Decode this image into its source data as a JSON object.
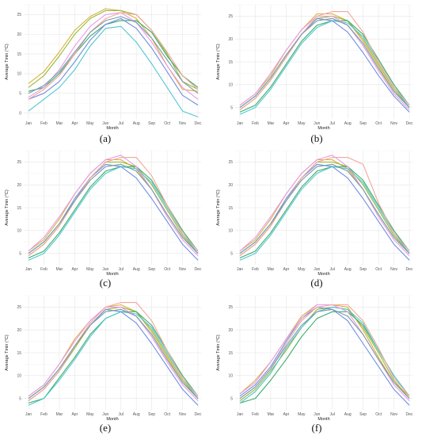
{
  "chart_data": [
    {
      "type": "line",
      "panel_label": "(a)",
      "xlabel": "Month",
      "ylabel": "Average Tmin (°C)",
      "categories": [
        "Jan",
        "Feb",
        "Mar",
        "Apr",
        "May",
        "Jun",
        "Jul",
        "Aug",
        "Sep",
        "Oct",
        "Nov",
        "Dec"
      ],
      "y_ticks": [
        0,
        5,
        10,
        15,
        20,
        25
      ],
      "ylim": [
        -1.5,
        27.5
      ],
      "grid": true,
      "series": [
        {
          "color": "#d9b23a",
          "values": [
            7.5,
            10.5,
            15.5,
            21,
            24.5,
            26.5,
            26,
            24,
            19,
            12,
            6,
            5.5
          ]
        },
        {
          "color": "#9ab83a",
          "values": [
            6.5,
            9.5,
            14.5,
            20,
            24,
            26,
            26,
            25,
            21,
            15,
            8,
            6
          ]
        },
        {
          "color": "#3aaa6a",
          "values": [
            5.5,
            6.5,
            10,
            15,
            19.5,
            22.5,
            23.5,
            23.5,
            20.5,
            14.5,
            9.5,
            6.5
          ]
        },
        {
          "color": "#4fc8d0",
          "values": [
            0.5,
            3.5,
            6.5,
            11,
            17,
            21.5,
            22,
            18,
            12.5,
            6.5,
            0.5,
            -1
          ]
        },
        {
          "color": "#6f8fe0",
          "values": [
            3.5,
            5,
            8,
            13,
            18.5,
            22.5,
            24,
            21.5,
            16.5,
            10.5,
            4.5,
            2
          ]
        },
        {
          "color": "#e99aec",
          "values": [
            4,
            6.5,
            11,
            17,
            22,
            25,
            25.5,
            23,
            18,
            12,
            6.5,
            3.5
          ]
        },
        {
          "color": "#f4a59b",
          "values": [
            3.5,
            6,
            9.5,
            15,
            20.5,
            24,
            25.5,
            25,
            21,
            15.5,
            9.5,
            6
          ]
        },
        {
          "color": "#7a9aa8",
          "values": [
            5,
            7,
            10.5,
            15.5,
            20.5,
            23.5,
            24.5,
            23,
            19,
            13.5,
            8,
            5
          ]
        }
      ]
    },
    {
      "type": "line",
      "panel_label": "(b)",
      "xlabel": "Month",
      "ylabel": "Average Tmin (°C)",
      "categories": [
        "Jan",
        "Feb",
        "Mar",
        "Apr",
        "May",
        "Jun",
        "Jul",
        "Aug",
        "Sep",
        "Oct",
        "Nov",
        "Dec"
      ],
      "y_ticks": [
        5,
        10,
        15,
        20,
        25
      ],
      "ylim": [
        2.5,
        27.5
      ],
      "grid": true,
      "series": [
        {
          "color": "#d9b23a",
          "values": [
            5.5,
            8,
            12,
            17.5,
            22,
            25.5,
            25.5,
            24,
            19.5,
            14,
            8.5,
            5
          ]
        },
        {
          "color": "#9ab83a",
          "values": [
            4.5,
            7,
            11,
            16,
            21,
            24.5,
            25,
            24,
            20,
            14.5,
            9,
            5
          ]
        },
        {
          "color": "#3aaa6a",
          "values": [
            4,
            5.5,
            9.5,
            14.5,
            19.5,
            23,
            24,
            24,
            21,
            15.5,
            10,
            5.5
          ]
        },
        {
          "color": "#4fc8d0",
          "values": [
            3.5,
            5,
            9,
            14,
            19,
            22.5,
            24,
            23.5,
            20.5,
            15,
            9.5,
            5
          ]
        },
        {
          "color": "#6f8fe0",
          "values": [
            5,
            7.5,
            11.5,
            16.5,
            21,
            24.5,
            24,
            21.5,
            17,
            12,
            7.5,
            4
          ]
        },
        {
          "color": "#e99aec",
          "values": [
            5.5,
            8,
            12.5,
            17.5,
            22,
            25,
            25,
            23,
            18.5,
            13,
            8,
            4.5
          ]
        },
        {
          "color": "#f4a59b",
          "values": [
            4.5,
            7,
            11,
            16,
            21,
            25,
            26,
            26,
            21.5,
            15,
            9.5,
            5.5
          ]
        },
        {
          "color": "#7a9aa8",
          "values": [
            5,
            7.5,
            11.5,
            16.5,
            21,
            24,
            24.5,
            23,
            19,
            13.5,
            8.5,
            5
          ]
        }
      ]
    },
    {
      "type": "line",
      "panel_label": "(c)",
      "xlabel": "Month",
      "ylabel": "Average Tmin (°C)",
      "categories": [
        "Jan",
        "Feb",
        "Mar",
        "Apr",
        "May",
        "Jun",
        "Jul",
        "Aug",
        "Sep",
        "Oct",
        "Nov",
        "Dec"
      ],
      "y_ticks": [
        5,
        10,
        15,
        20,
        25
      ],
      "ylim": [
        2.5,
        27.5
      ],
      "grid": true,
      "series": [
        {
          "color": "#d9b23a",
          "values": [
            5.5,
            8,
            12.5,
            18,
            22.5,
            25.5,
            25.5,
            23.5,
            19,
            13.5,
            8.5,
            5
          ]
        },
        {
          "color": "#9ab83a",
          "values": [
            4.5,
            7,
            11,
            16.5,
            21.5,
            25,
            25,
            24,
            20,
            14.5,
            9,
            5
          ]
        },
        {
          "color": "#3aaa6a",
          "values": [
            4,
            5.5,
            9.5,
            14.5,
            19.5,
            23,
            24,
            24,
            21,
            15.5,
            10,
            5.5
          ]
        },
        {
          "color": "#4fc8d0",
          "values": [
            3.5,
            5,
            9,
            14,
            19,
            22.5,
            24,
            23.5,
            20.5,
            15,
            9.5,
            5
          ]
        },
        {
          "color": "#6f8fe0",
          "values": [
            5,
            7.5,
            11.5,
            17,
            21.5,
            24.5,
            24,
            21.5,
            17,
            12,
            7,
            3.5
          ]
        },
        {
          "color": "#e99aec",
          "values": [
            5.5,
            8.5,
            13,
            18,
            22.5,
            25.5,
            26.5,
            24,
            19,
            13,
            8,
            4.5
          ]
        },
        {
          "color": "#f4a59b",
          "values": [
            4.5,
            7,
            11,
            16.5,
            21.5,
            25,
            26,
            26,
            22,
            15.5,
            9.5,
            5.5
          ]
        },
        {
          "color": "#7a9aa8",
          "values": [
            5,
            7.5,
            11.5,
            16.5,
            21,
            24,
            24.5,
            23,
            19,
            13.5,
            8.5,
            5
          ]
        }
      ]
    },
    {
      "type": "line",
      "panel_label": "(d)",
      "xlabel": "Month",
      "ylabel": "Average Tmin (°C)",
      "categories": [
        "Jan",
        "Feb",
        "Mar",
        "Apr",
        "May",
        "Jun",
        "Jul",
        "Aug",
        "Sep",
        "Oct",
        "Nov",
        "Dec"
      ],
      "y_ticks": [
        5,
        10,
        15,
        20,
        25
      ],
      "ylim": [
        2.5,
        27.5
      ],
      "grid": true,
      "series": [
        {
          "color": "#d9b23a",
          "values": [
            5.5,
            8,
            12.5,
            18,
            22.5,
            25.5,
            25.5,
            23.5,
            19,
            13.5,
            8.5,
            5
          ]
        },
        {
          "color": "#9ab83a",
          "values": [
            4.5,
            7,
            11,
            16.5,
            21.5,
            25,
            25,
            24,
            20,
            14.5,
            9,
            5
          ]
        },
        {
          "color": "#3aaa6a",
          "values": [
            4,
            5.5,
            9.5,
            14.5,
            19.5,
            23,
            24,
            24,
            21,
            15.5,
            10,
            5.5
          ]
        },
        {
          "color": "#4fc8d0",
          "values": [
            3.5,
            5,
            9,
            14,
            19,
            22.5,
            24,
            23.5,
            20.5,
            15,
            9.5,
            5
          ]
        },
        {
          "color": "#6f8fe0",
          "values": [
            5,
            7.5,
            11.5,
            17,
            21.5,
            24.5,
            24,
            21.5,
            17,
            12,
            7,
            3.5
          ]
        },
        {
          "color": "#e99aec",
          "values": [
            5.5,
            8.5,
            13,
            18,
            22.5,
            25.5,
            26.5,
            24,
            19,
            13,
            8,
            4.5
          ]
        },
        {
          "color": "#f4a59b",
          "values": [
            4.5,
            7,
            11,
            16.5,
            21.5,
            25,
            26,
            26,
            24.5,
            16,
            9.5,
            5.5
          ]
        },
        {
          "color": "#7a9aa8",
          "values": [
            5,
            7.5,
            11.5,
            16.5,
            21,
            24,
            24.5,
            23,
            19,
            13.5,
            8.5,
            5
          ]
        }
      ]
    },
    {
      "type": "line",
      "panel_label": "(e)",
      "xlabel": "Month",
      "ylabel": "Average Tmin (°C)",
      "categories": [
        "Jan",
        "Feb",
        "Mar",
        "Apr",
        "May",
        "Jun",
        "Jul",
        "Aug",
        "Sep",
        "Oct",
        "Nov",
        "Dec"
      ],
      "y_ticks": [
        5,
        10,
        15,
        20,
        25
      ],
      "ylim": [
        2.5,
        27.5
      ],
      "grid": true,
      "series": [
        {
          "color": "#d9b23a",
          "values": [
            5.5,
            8,
            12.5,
            18,
            22,
            25,
            25.5,
            24,
            19.5,
            14,
            8.5,
            5
          ]
        },
        {
          "color": "#9ab83a",
          "values": [
            4.5,
            7,
            11,
            16,
            21,
            24.5,
            25,
            24,
            20,
            14.5,
            9,
            5
          ]
        },
        {
          "color": "#3aaa6a",
          "values": [
            4,
            5,
            9.5,
            14,
            19,
            22.5,
            24,
            24,
            21,
            15.5,
            10,
            5.5
          ]
        },
        {
          "color": "#4fc8d0",
          "values": [
            3.5,
            5,
            9,
            13.5,
            18.5,
            22.5,
            24,
            23.5,
            20.5,
            15,
            9.5,
            5
          ]
        },
        {
          "color": "#6f8fe0",
          "values": [
            5,
            7.5,
            11.5,
            16.5,
            21,
            24.5,
            24,
            21.5,
            17,
            12,
            7,
            3.5
          ]
        },
        {
          "color": "#e99aec",
          "values": [
            5.5,
            8,
            12.5,
            17.5,
            22,
            25,
            25,
            23,
            18.5,
            13,
            8,
            4.5
          ]
        },
        {
          "color": "#f4a59b",
          "values": [
            4.5,
            7,
            11,
            16.5,
            21.5,
            25,
            26,
            26,
            22,
            15.5,
            9.5,
            5.5
          ]
        },
        {
          "color": "#7a9aa8",
          "values": [
            5,
            7.5,
            11.5,
            16.5,
            21,
            24,
            24.5,
            23,
            19,
            13.5,
            8.5,
            5
          ]
        }
      ]
    },
    {
      "type": "line",
      "panel_label": "(f)",
      "xlabel": "Month",
      "ylabel": "Average Tmin (°C)",
      "categories": [
        "Jan",
        "Feb",
        "Mar",
        "Apr",
        "May",
        "Jun",
        "Jul",
        "Aug",
        "Sep",
        "Oct",
        "Nov",
        "Dec"
      ],
      "y_ticks": [
        5,
        10,
        15,
        20,
        25
      ],
      "ylim": [
        2.5,
        27.5
      ],
      "grid": true,
      "series": [
        {
          "color": "#d9b23a",
          "values": [
            6,
            9,
            13,
            18,
            23,
            25.5,
            25.5,
            25,
            20,
            14,
            8.5,
            5.5
          ]
        },
        {
          "color": "#9ab83a",
          "values": [
            4.5,
            7,
            11,
            15.5,
            20.5,
            24.5,
            25,
            24.5,
            20.5,
            15,
            9,
            5
          ]
        },
        {
          "color": "#3aaa6a",
          "values": [
            4,
            5,
            9,
            13.5,
            18.5,
            22.5,
            24,
            24,
            21,
            15.5,
            10,
            5.5
          ]
        },
        {
          "color": "#4fc8d0",
          "values": [
            4,
            6.5,
            10.5,
            16,
            20.5,
            24,
            25,
            24.5,
            21.5,
            15.5,
            10,
            5.5
          ]
        },
        {
          "color": "#6f8fe0",
          "values": [
            5.5,
            8,
            12,
            17.5,
            22.5,
            25,
            24.5,
            22,
            17,
            12,
            7,
            3.5
          ]
        },
        {
          "color": "#e99aec",
          "values": [
            6,
            8.5,
            13,
            18,
            22.5,
            25.5,
            25.5,
            24,
            19,
            13.5,
            8,
            4.5
          ]
        },
        {
          "color": "#f4a59b",
          "values": [
            5,
            7.5,
            11.5,
            17,
            22,
            25,
            25.5,
            25.5,
            22,
            16,
            9.5,
            5.5
          ]
        },
        {
          "color": "#7a9aa8",
          "values": [
            5,
            7.5,
            11.5,
            16.5,
            21,
            24,
            24.5,
            23,
            19,
            13.5,
            8.5,
            5
          ]
        }
      ]
    }
  ]
}
